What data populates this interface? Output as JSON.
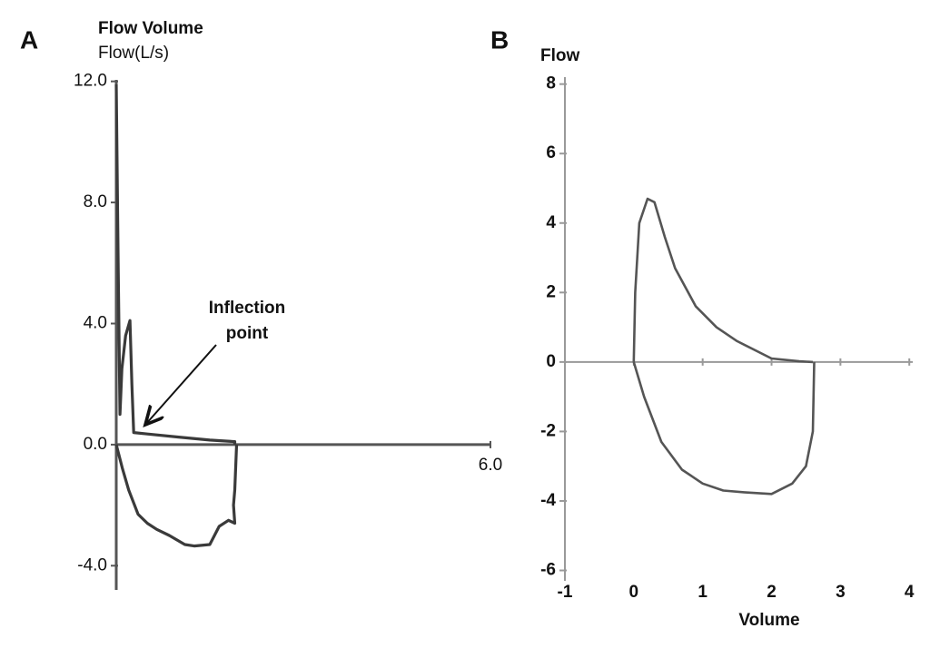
{
  "chart_data": [
    {
      "type": "line",
      "panel": "A",
      "title": "Flow Volume",
      "y_label": "Flow(L/s)",
      "annotation": "Inflection point",
      "xlim": [
        0,
        6
      ],
      "xticks": [
        {
          "value": 6,
          "label": "6.0"
        }
      ],
      "ylim": [
        -4.8,
        12.05
      ],
      "yticks": [
        {
          "value": 12,
          "label": "12.0"
        },
        {
          "value": 8,
          "label": "8.0"
        },
        {
          "value": 4,
          "label": "4.0"
        },
        {
          "value": 0,
          "label": "0.0"
        },
        {
          "value": -4,
          "label": "-4.0"
        }
      ],
      "series": [
        {
          "color": "#3a3a3a",
          "x": [
            0,
            0.03,
            0.06,
            0.09,
            0.15,
            0.22,
            0.25,
            0.28,
            0.5,
            1.0,
            1.5,
            1.9,
            1.9
          ],
          "values": [
            11.9,
            6,
            1,
            2.5,
            3.6,
            4.1,
            2,
            0.4,
            0.35,
            0.25,
            0.15,
            0.1,
            0
          ]
        },
        {
          "color": "#3a3a3a",
          "x": [
            0,
            0.1,
            0.2,
            0.35,
            0.5,
            0.65,
            0.85,
            1.1,
            1.25,
            1.5,
            1.65,
            1.8,
            1.9,
            1.88,
            1.9,
            1.93
          ],
          "values": [
            0,
            -0.8,
            -1.5,
            -2.3,
            -2.6,
            -2.8,
            -3.0,
            -3.3,
            -3.35,
            -3.3,
            -2.7,
            -2.5,
            -2.6,
            -2.0,
            -1.5,
            0
          ]
        }
      ]
    },
    {
      "type": "line",
      "panel": "B",
      "y_label": "Flow",
      "x_label": "Volume",
      "xlim": [
        -1,
        4.05
      ],
      "xticks": [
        -1,
        0,
        1,
        2,
        3,
        4
      ],
      "ylim": [
        -6.3,
        8.2
      ],
      "yticks": [
        8,
        6,
        4,
        2,
        0,
        -2,
        -4,
        -6
      ],
      "series": [
        {
          "color": "#555555",
          "x": [
            0,
            0.02,
            0.08,
            0.2,
            0.3,
            0.45,
            0.6,
            0.9,
            1.2,
            1.5,
            1.8,
            2.0,
            2.4,
            2.6
          ],
          "values": [
            0,
            2,
            4,
            4.7,
            4.6,
            3.6,
            2.7,
            1.6,
            1.0,
            0.6,
            0.3,
            0.1,
            0.02,
            0
          ]
        },
        {
          "color": "#555555",
          "x": [
            0,
            0.15,
            0.4,
            0.7,
            1.0,
            1.3,
            1.6,
            2.0,
            2.3,
            2.5,
            2.6,
            2.62
          ],
          "values": [
            0,
            -1,
            -2.3,
            -3.1,
            -3.5,
            -3.7,
            -3.75,
            -3.8,
            -3.5,
            -3.0,
            -2,
            0
          ]
        }
      ]
    }
  ]
}
